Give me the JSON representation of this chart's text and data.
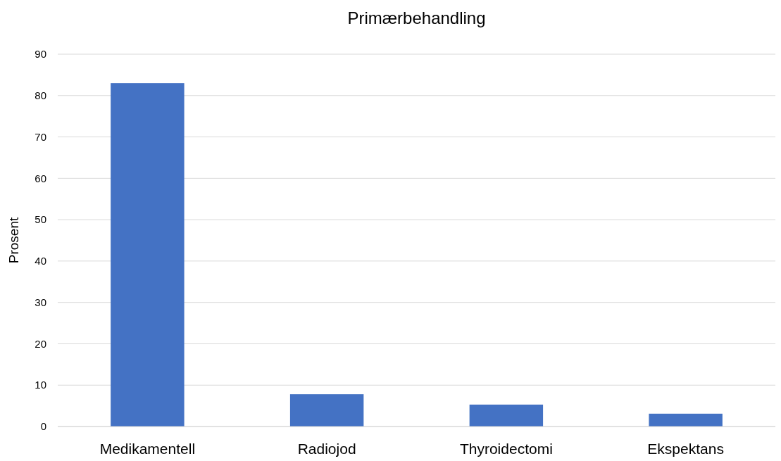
{
  "chart_data": {
    "type": "bar",
    "title": "Primærbehandling",
    "ylabel": "Prosent",
    "categories": [
      "Medikamentell",
      "Radiojod",
      "Thyroidectomi",
      "Ekspektans"
    ],
    "values": [
      83,
      7.8,
      5.3,
      3.1
    ],
    "color": "#4472c4",
    "ylim": [
      0,
      90
    ],
    "yticks": [
      0,
      10,
      20,
      30,
      40,
      50,
      60,
      70,
      80,
      90
    ],
    "grid": "y"
  }
}
